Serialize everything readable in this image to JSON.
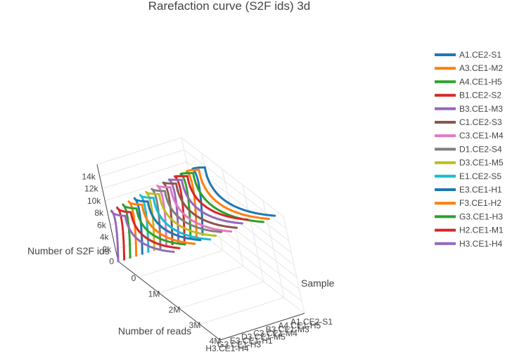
{
  "chart_data": {
    "type": "line",
    "title": "Rarefaction curve (S2F ids) 3d",
    "xlabel": "Number of reads",
    "ylabel": "Sample",
    "zlabel": "Number of S2F ids",
    "x_ticks": [
      "0",
      "1M",
      "2M",
      "3M",
      "4M"
    ],
    "y_ticks": [
      "A1.CE2-S1",
      "A4.CE1-H5",
      "B3.CE1-M3",
      "C3.CE1-M4",
      "D3.CE1-M5",
      "E3.CE1-H1",
      "G3.CE1-H3",
      "H3.CE1-H4"
    ],
    "z_ticks": [
      "0",
      "2k",
      "4k",
      "6k",
      "8k",
      "10k",
      "12k",
      "14k"
    ],
    "legend_position": "right",
    "series": [
      {
        "name": "A1.CE2-S1",
        "color": "#1f77b4",
        "points": [
          [
            0,
            0
          ],
          [
            250000,
            11500
          ],
          [
            1000000,
            13700
          ],
          [
            4500000,
            14800
          ]
        ]
      },
      {
        "name": "A3.CE1-M2",
        "color": "#ff7f0e",
        "points": [
          [
            0,
            0
          ],
          [
            250000,
            11400
          ],
          [
            1000000,
            13600
          ],
          [
            4500000,
            14600
          ]
        ]
      },
      {
        "name": "A4.CE1-H5",
        "color": "#2ca02c",
        "points": [
          [
            0,
            0
          ],
          [
            250000,
            11300
          ],
          [
            1000000,
            13400
          ],
          [
            4500000,
            14400
          ]
        ]
      },
      {
        "name": "B1.CE2-S2",
        "color": "#d62728",
        "points": [
          [
            0,
            0
          ],
          [
            250000,
            11200
          ],
          [
            1000000,
            13200
          ],
          [
            4000000,
            13800
          ]
        ]
      },
      {
        "name": "B3.CE1-M3",
        "color": "#9467bd",
        "points": [
          [
            0,
            0
          ],
          [
            250000,
            11000
          ],
          [
            1000000,
            12900
          ],
          [
            4000000,
            13500
          ]
        ]
      },
      {
        "name": "C1.CE2-S3",
        "color": "#8c564b",
        "points": [
          [
            0,
            0
          ],
          [
            250000,
            10800
          ],
          [
            1000000,
            12600
          ],
          [
            4000000,
            13100
          ]
        ]
      },
      {
        "name": "C3.CE1-M4",
        "color": "#e377c2",
        "points": [
          [
            0,
            0
          ],
          [
            250000,
            10600
          ],
          [
            1000000,
            12300
          ],
          [
            4000000,
            12800
          ]
        ]
      },
      {
        "name": "D1.CE2-S4",
        "color": "#7f7f7f",
        "points": [
          [
            0,
            0
          ],
          [
            250000,
            10400
          ],
          [
            1000000,
            12000
          ],
          [
            3800000,
            12500
          ]
        ]
      },
      {
        "name": "D3.CE1-M5",
        "color": "#bcbd22",
        "points": [
          [
            0,
            0
          ],
          [
            250000,
            10200
          ],
          [
            1000000,
            11800
          ],
          [
            3800000,
            12200
          ]
        ]
      },
      {
        "name": "E1.CE2-S5",
        "color": "#17becf",
        "points": [
          [
            0,
            0
          ],
          [
            250000,
            10000
          ],
          [
            1000000,
            11500
          ],
          [
            3800000,
            11900
          ]
        ]
      },
      {
        "name": "E3.CE1-H1",
        "color": "#1f77b4",
        "points": [
          [
            0,
            0
          ],
          [
            250000,
            9800
          ],
          [
            1000000,
            11200
          ],
          [
            3600000,
            11600
          ]
        ]
      },
      {
        "name": "F3.CE1-H2",
        "color": "#ff7f0e",
        "points": [
          [
            0,
            0
          ],
          [
            250000,
            9600
          ],
          [
            1000000,
            11000
          ],
          [
            3600000,
            11300
          ]
        ]
      },
      {
        "name": "G3.CE1-H3",
        "color": "#2ca02c",
        "points": [
          [
            0,
            0
          ],
          [
            250000,
            9400
          ],
          [
            1000000,
            10700
          ],
          [
            3400000,
            11000
          ]
        ]
      },
      {
        "name": "H2.CE1-M1",
        "color": "#d62728",
        "points": [
          [
            0,
            0
          ],
          [
            250000,
            9200
          ],
          [
            1000000,
            10400
          ],
          [
            3400000,
            10700
          ]
        ]
      },
      {
        "name": "H3.CE1-H4",
        "color": "#9467bd",
        "points": [
          [
            0,
            0
          ],
          [
            250000,
            9000
          ],
          [
            1000000,
            10100
          ],
          [
            3400000,
            10400
          ]
        ]
      }
    ]
  }
}
